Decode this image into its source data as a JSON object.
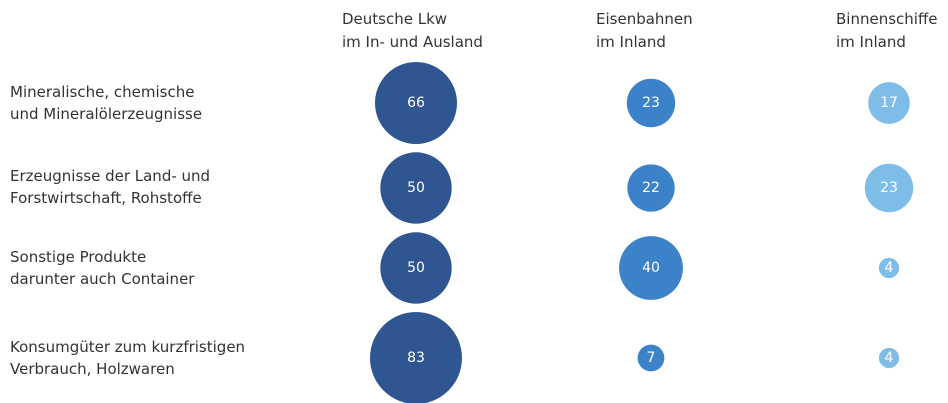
{
  "chart_data": {
    "type": "bubble",
    "columns": [
      {
        "label_lines": [
          "Deutsche Lkw",
          "im In- und Ausland"
        ]
      },
      {
        "label_lines": [
          "Eisenbahnen",
          "im Inland"
        ]
      },
      {
        "label_lines": [
          "Binnenschiffe",
          "im Inland"
        ]
      }
    ],
    "rows": [
      {
        "label_lines": [
          "Mineralische, chemische",
          "und Mineralölerzeugnisse"
        ],
        "values": [
          66,
          23,
          17
        ]
      },
      {
        "label_lines": [
          "Erzeugnisse der Land- und",
          "Forstwirtschaft, Rohstoffe"
        ],
        "values": [
          50,
          22,
          23
        ]
      },
      {
        "label_lines": [
          "Sonstige Produkte",
          "darunter auch Container"
        ],
        "values": [
          50,
          40,
          4
        ]
      },
      {
        "label_lines": [
          "Konsumgüter zum kurzfristigen",
          "Verbrauch, Holzwaren"
        ],
        "values": [
          83,
          7,
          4
        ]
      }
    ],
    "colors": [
      "#2f5690",
      "#3b82c8",
      "#7fbde9"
    ]
  }
}
